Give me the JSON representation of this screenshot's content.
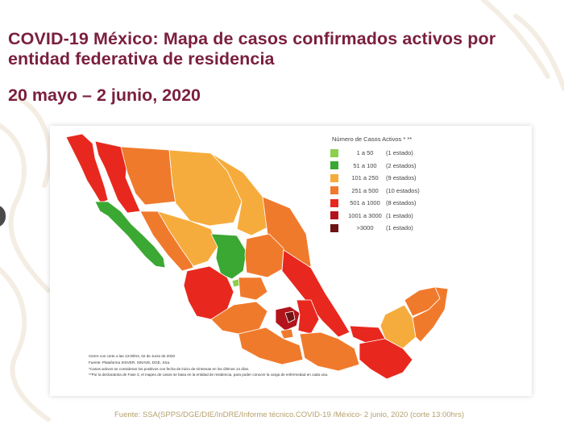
{
  "header": {
    "title": "COVID-19 México: Mapa de casos confirmados activos por entidad federativa de residencia",
    "date_range": "20 mayo – 2 junio, 2020"
  },
  "legend": {
    "title": "Número de Casos Activos * **",
    "items": [
      {
        "range": "1 a 50",
        "states": "(1 estado)",
        "color": "#8ccf4d"
      },
      {
        "range": "51 a 100",
        "states": "(2 estados)",
        "color": "#3aa832"
      },
      {
        "range": "101 a 250",
        "states": "(9 estados)",
        "color": "#f6ac3c"
      },
      {
        "range": "251 a 500",
        "states": "(10 estados)",
        "color": "#f07a2c"
      },
      {
        "range": "501 a 1000",
        "states": "(8 estados)",
        "color": "#e8281e"
      },
      {
        "range": "1001 a 3000",
        "states": "(1 estado)",
        "color": "#b3141c"
      },
      {
        "range": ">3000",
        "states": "(1 estado)",
        "color": "#6e1414"
      }
    ]
  },
  "notes": [
    "Cierre con corte a las 13:00hrs, 02 de Junio de 2020",
    "Fuente: Plataforma SISVER, SINAVE, DGE, SSa.",
    "*Casos activos se consideran los positivos con fecha de inicio de síntomas en los últimos 14 días.",
    "**Por la declaratoria de Fase 3, el mapeo de casos se basa en la entidad de residencia, para poder conocer la carga de enfermedad en cada una."
  ],
  "footer": {
    "source": "Fuente: SSA(SPPS/DGE/DIE/InDRE/Informe técnico.COVID-19 /México- 2 junio, 2020 (corte 13:00hrs)"
  },
  "colors": {
    "title": "#7a1f3d",
    "source": "#b6a06e"
  }
}
